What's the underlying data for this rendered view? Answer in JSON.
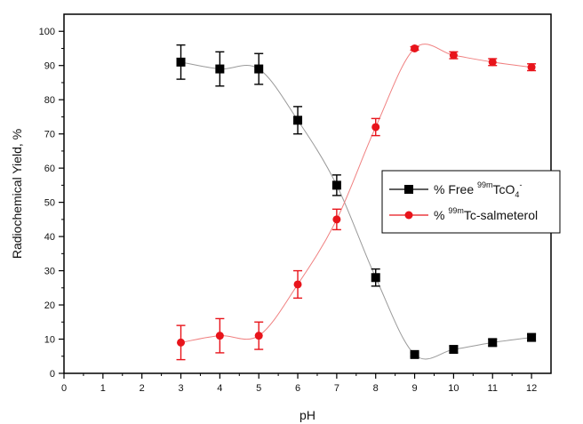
{
  "chart_data": {
    "type": "line",
    "xlabel": "pH",
    "ylabel": "Radiochemical Yield, %",
    "xlim": [
      0,
      12.5
    ],
    "ylim": [
      0,
      105
    ],
    "xticks": [
      "0",
      "1",
      "2",
      "3",
      "4",
      "5",
      "6",
      "7",
      "8",
      "9",
      "10",
      "11",
      "12"
    ],
    "yticks": [
      "0",
      "10",
      "20",
      "30",
      "40",
      "50",
      "60",
      "70",
      "80",
      "90",
      "100"
    ],
    "grid": false,
    "legend_position": "right",
    "series": [
      {
        "name_parts": [
          "% Free ",
          "99m",
          "TcO",
          "4",
          "-"
        ],
        "color": "#000000",
        "marker": "square",
        "x": [
          3,
          4,
          5,
          6,
          7,
          8,
          9,
          10,
          11,
          12
        ],
        "y": [
          91,
          89,
          89,
          74,
          55,
          28,
          5.5,
          7,
          9,
          10.5
        ],
        "err": [
          5,
          5,
          4.5,
          4,
          3,
          2.5,
          0.5,
          1,
          1,
          1
        ]
      },
      {
        "name_parts": [
          "% ",
          "99m",
          "Tc-salmeterol"
        ],
        "color": "#e8141b",
        "marker": "circle",
        "x": [
          3,
          4,
          5,
          6,
          7,
          8,
          9,
          10,
          11,
          12
        ],
        "y": [
          9,
          11,
          11,
          26,
          45,
          72,
          95,
          93,
          91,
          89.5
        ],
        "err": [
          5,
          5,
          4,
          4,
          3,
          2.5,
          0.5,
          1,
          1,
          1
        ]
      }
    ]
  }
}
